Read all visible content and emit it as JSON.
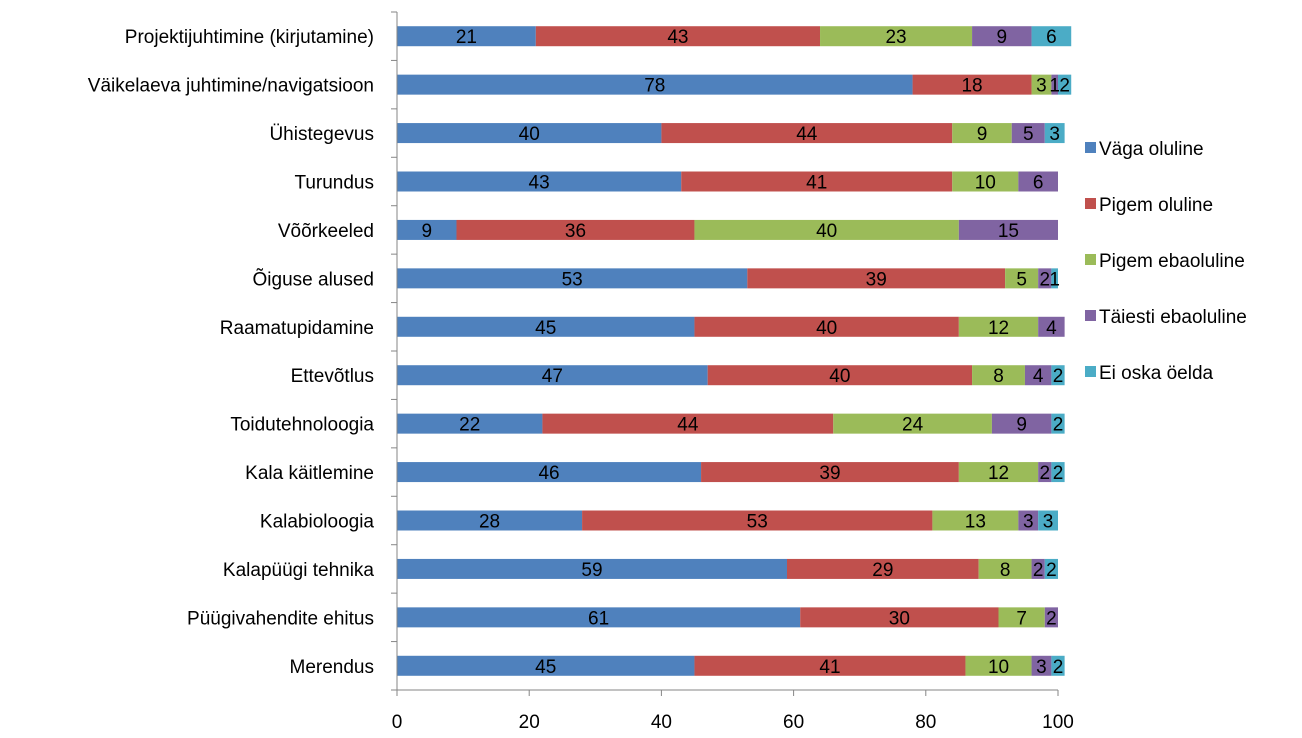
{
  "chart_data": {
    "type": "bar",
    "orientation": "horizontal",
    "stacked": true,
    "title": "",
    "xlabel": "",
    "ylabel": "",
    "xlim": [
      0,
      100
    ],
    "xticks": [
      0,
      20,
      40,
      60,
      80,
      100
    ],
    "grid": false,
    "legend_position": "right",
    "categories": [
      "Projektijuhtimine (kirjutamine)",
      "Väikelaeva juhtimine/navigatsioon",
      "Ühistegevus",
      "Turundus",
      "Võõrkeeled",
      "Õiguse alused",
      "Raamatupidamine",
      "Ettevõtlus",
      "Toidutehnoloogia",
      "Kala käitlemine",
      "Kalabioloogia",
      "Kalapüügi tehnika",
      "Püügivahendite ehitus",
      "Merendus"
    ],
    "series": [
      {
        "name": "Väga oluline",
        "color": "#4f81bd",
        "values": [
          21,
          78,
          40,
          43,
          9,
          53,
          45,
          47,
          22,
          46,
          28,
          59,
          61,
          45
        ]
      },
      {
        "name": "Pigem oluline",
        "color": "#c0504d",
        "values": [
          43,
          18,
          44,
          41,
          36,
          39,
          40,
          40,
          44,
          39,
          53,
          29,
          30,
          41
        ]
      },
      {
        "name": "Pigem ebaoluline",
        "color": "#9bbb59",
        "values": [
          23,
          3,
          9,
          10,
          40,
          5,
          12,
          8,
          24,
          12,
          13,
          8,
          7,
          10
        ]
      },
      {
        "name": "Täiesti ebaoluline",
        "color": "#8064a2",
        "values": [
          9,
          1,
          5,
          6,
          15,
          2,
          4,
          4,
          9,
          2,
          3,
          2,
          2,
          3
        ]
      },
      {
        "name": "Ei oska öelda",
        "color": "#4bacc6",
        "values": [
          6,
          2,
          3,
          0,
          0,
          1,
          0,
          2,
          2,
          2,
          3,
          2,
          0,
          2
        ]
      }
    ]
  }
}
